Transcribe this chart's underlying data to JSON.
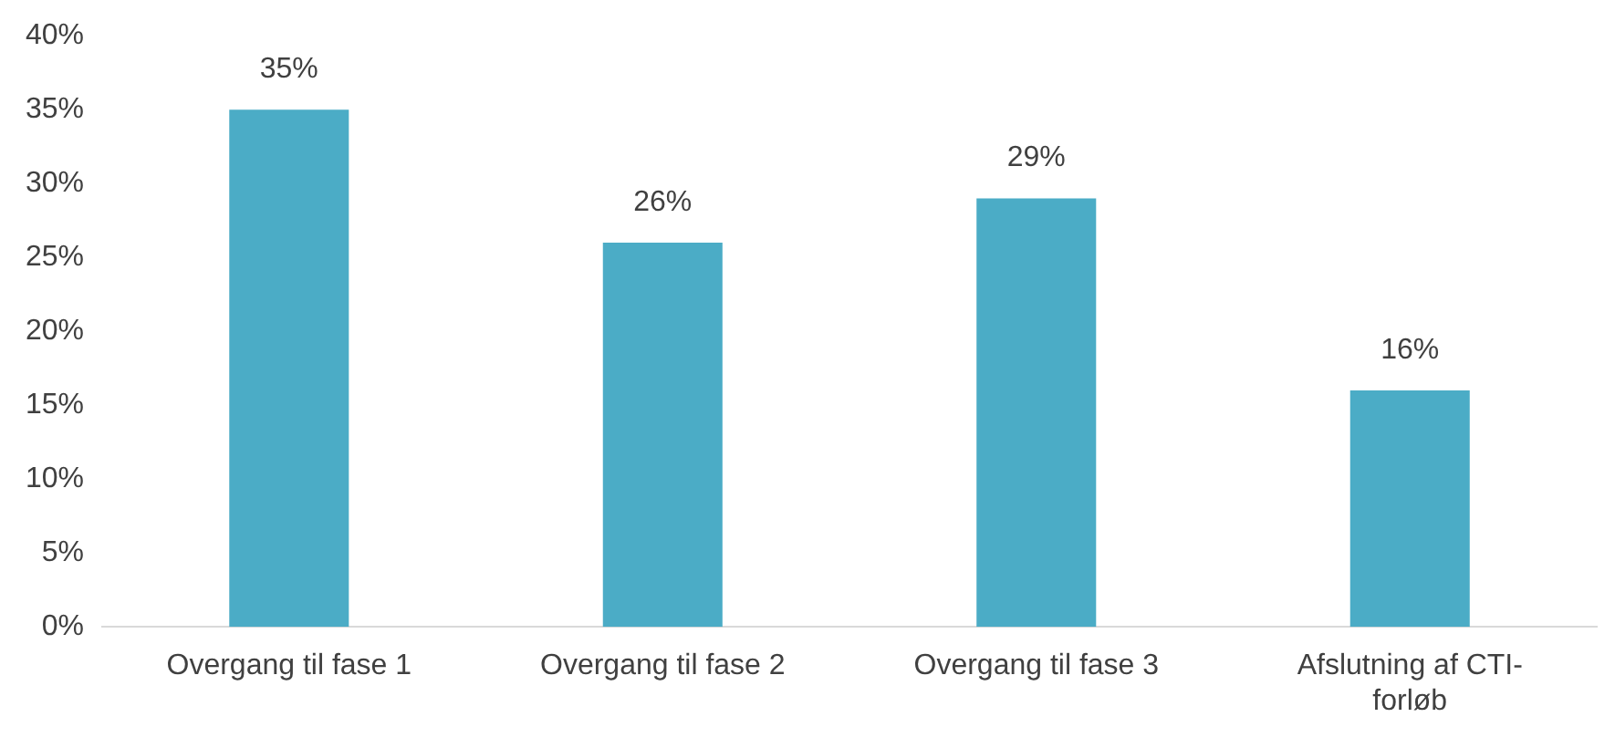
{
  "chart_data": {
    "type": "bar",
    "categories": [
      "Overgang til fase 1",
      "Overgang til fase 2",
      "Overgang til fase 3",
      "Afslutning af CTI-forløb"
    ],
    "values": [
      35,
      26,
      29,
      16
    ],
    "value_labels": [
      "35%",
      "26%",
      "29%",
      "16%"
    ],
    "color": "#4bacc6",
    "ylim": [
      0,
      40
    ],
    "yticks": [
      {
        "value": 0,
        "label": "0%"
      },
      {
        "value": 5,
        "label": "5%"
      },
      {
        "value": 10,
        "label": "10%"
      },
      {
        "value": 15,
        "label": "15%"
      },
      {
        "value": 20,
        "label": "20%"
      },
      {
        "value": 25,
        "label": "25%"
      },
      {
        "value": 30,
        "label": "30%"
      },
      {
        "value": 35,
        "label": "35%"
      },
      {
        "value": 40,
        "label": "40%"
      }
    ],
    "grid": false,
    "legend": false
  }
}
